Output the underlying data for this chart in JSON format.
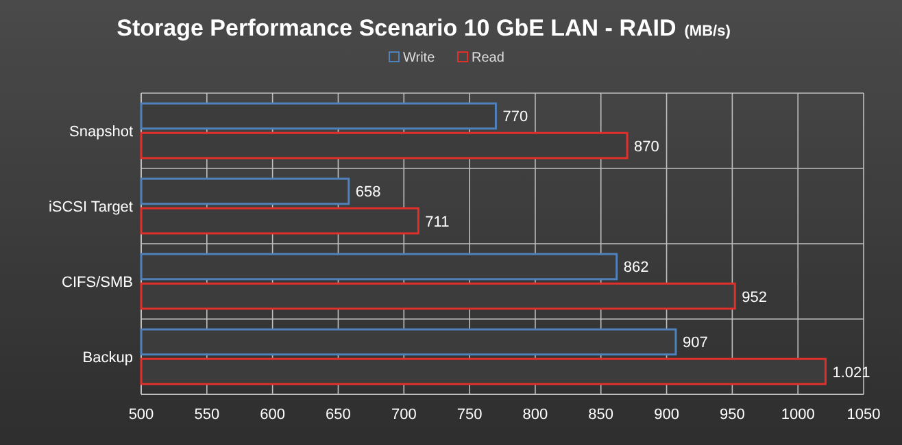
{
  "chart_data": {
    "type": "bar",
    "orientation": "horizontal",
    "title": "Storage  Performance Scenario 10 GbE LAN - RAID",
    "subtitle": "(MB/s)",
    "categories": [
      "Snapshot",
      "iSCSI Target",
      "CIFS/SMB",
      "Backup"
    ],
    "series": [
      {
        "name": "Write",
        "color": "#4f81bd",
        "values": [
          770,
          658,
          862,
          907
        ],
        "value_labels": [
          "770",
          "658",
          "862",
          "907"
        ]
      },
      {
        "name": "Read",
        "color": "#e0302c",
        "values": [
          870,
          711,
          952,
          1021
        ],
        "value_labels": [
          "870",
          "711",
          "952",
          "1.021"
        ]
      }
    ],
    "xlim": [
      500,
      1050
    ],
    "xticks": [
      500,
      550,
      600,
      650,
      700,
      750,
      800,
      850,
      900,
      950,
      1000,
      1050
    ],
    "grid": true,
    "legend": "top"
  }
}
